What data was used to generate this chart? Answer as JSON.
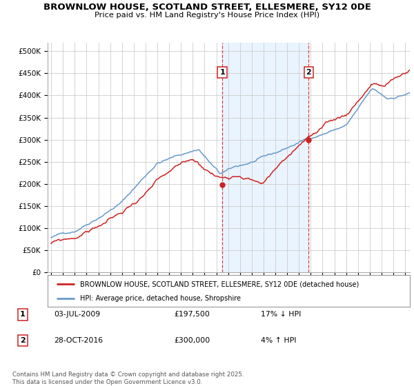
{
  "title": "BROWNLOW HOUSE, SCOTLAND STREET, ELLESMERE, SY12 0DE",
  "subtitle": "Price paid vs. HM Land Registry's House Price Index (HPI)",
  "ylim": [
    0,
    520000
  ],
  "yticks": [
    0,
    50000,
    100000,
    150000,
    200000,
    250000,
    300000,
    350000,
    400000,
    450000,
    500000
  ],
  "xlim_start": 1994.7,
  "xlim_end": 2025.4,
  "marker1_x": 2009.5,
  "marker2_x": 2016.83,
  "sale1_price_y": 197500,
  "sale2_price_y": 300000,
  "legend_line1": "BROWNLOW HOUSE, SCOTLAND STREET, ELLESMERE, SY12 0DE (detached house)",
  "legend_line2": "HPI: Average price, detached house, Shropshire",
  "sale1_date": "03-JUL-2009",
  "sale1_price": "£197,500",
  "sale1_hpi": "17% ↓ HPI",
  "sale2_date": "28-OCT-2016",
  "sale2_price": "£300,000",
  "sale2_hpi": "4% ↑ HPI",
  "footer": "Contains HM Land Registry data © Crown copyright and database right 2025.\nThis data is licensed under the Open Government Licence v3.0.",
  "color_red": "#cc2222",
  "color_blue": "#6699cc",
  "color_shading": "#ddeeff",
  "grid_color": "#cccccc",
  "bg_color": "#ffffff"
}
